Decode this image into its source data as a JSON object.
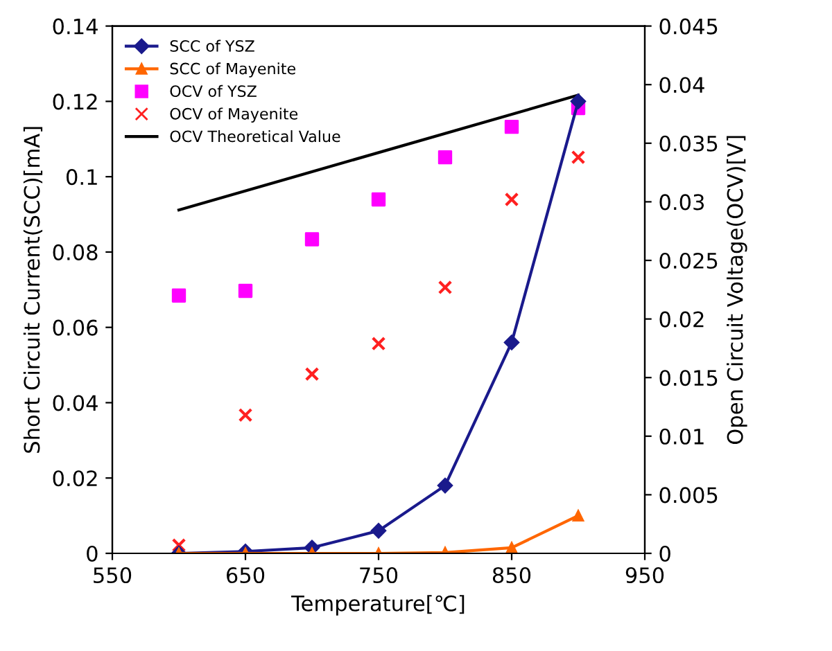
{
  "chart_data": {
    "type": "line",
    "xlabel": "Temperature[℃]",
    "ylabel": "Short Circuit Current(SCC)[mA]",
    "y2label": "Open Circuit Voltage(OCV)[V]",
    "x": [
      600,
      650,
      700,
      750,
      800,
      850,
      900
    ],
    "series": [
      {
        "name": "SCC of YSZ",
        "color": "#1a1a8c",
        "marker": "diamond",
        "values": [
          0,
          0.0005,
          0.0015,
          0.006,
          0.018,
          0.056,
          0.12
        ]
      },
      {
        "name": "SCC of Mayenite",
        "color": "#ff6600",
        "marker": "triangle",
        "values": [
          0,
          0,
          0,
          0,
          0.0002,
          0.0015,
          0.01
        ]
      },
      {
        "name": "OCV of YSZ",
        "type": "scatter",
        "axis": "y2",
        "color": "#ff00ff",
        "marker": "square",
        "values": [
          0.022,
          0.0224,
          0.0268,
          0.0302,
          0.0338,
          0.0364,
          0.038
        ]
      },
      {
        "name": "OCV of Mayenite",
        "type": "scatter",
        "axis": "y2",
        "color": "#ff2020",
        "marker": "cross",
        "values": [
          0.0007,
          0.0118,
          0.0153,
          0.0179,
          0.0227,
          0.0302,
          0.0338
        ]
      },
      {
        "name": "OCV Theoretical Value",
        "axis": "y2",
        "color": "#000000",
        "marker": "none",
        "x": [
          600,
          900
        ],
        "values": [
          0.0293,
          0.0391
        ]
      }
    ],
    "xlim": [
      550,
      950
    ],
    "xticks": [
      550,
      650,
      750,
      850,
      950
    ],
    "ylim": [
      0,
      0.14
    ],
    "yticks": [
      0,
      0.02,
      0.04,
      0.06,
      0.08,
      0.1,
      0.12,
      0.14
    ],
    "y2lim": [
      0,
      0.045
    ],
    "y2ticks": [
      0,
      0.005,
      0.01,
      0.015,
      0.02,
      0.025,
      0.03,
      0.035,
      0.04,
      0.045
    ],
    "legend": "top left",
    "grid": false
  }
}
